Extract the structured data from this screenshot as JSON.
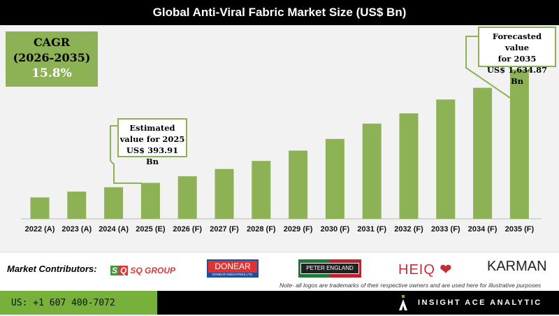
{
  "title": "Global Anti-Viral Fabric Market Size (US$ Bn)",
  "cagr": {
    "label": "CAGR",
    "period": "(2026-2035)",
    "value": "15.8%"
  },
  "callout_2025": {
    "line1": "Estimated",
    "line2": "value for 2025",
    "line3": "US$ 393.91 Bn"
  },
  "callout_2035": {
    "line1": "Forecasted value",
    "line2": "for 2035",
    "line3": "US$ 1,634.87 Bn"
  },
  "chart_data": {
    "type": "bar",
    "title": "Global Anti-Viral Fabric Market Size (US$ Bn)",
    "categories": [
      "2022 (A)",
      "2023 (A)",
      "2024 (A)",
      "2025 (E)",
      "2026 (F)",
      "2027 (F)",
      "2028 (F)",
      "2029 (F)",
      "2030 (F)",
      "2031 (F)",
      "2032 (F)",
      "2033 (F)",
      "2034 (F)",
      "2035 (F)"
    ],
    "values": [
      234,
      298,
      346,
      393.91,
      466,
      546,
      634,
      747,
      875,
      1043,
      1155,
      1307,
      1435,
      1634.87
    ],
    "ylim": [
      0,
      1700
    ],
    "grid": false,
    "bar_color": "#8db255"
  },
  "contributors": {
    "label": "Market Contributors:",
    "logos": [
      "SQ GROUP",
      "DONEAR",
      "DONEAR INDUSTRIES LTD.",
      "PETER ENGLAND",
      "HEIQ",
      "KARMAN"
    ],
    "note": "Note- all logos are trademarks of their respective owners and are used here for illustrative purposes"
  },
  "footer": {
    "phone": "US: +1 607 400-7072",
    "brand": "INSIGHT ACE ANALYTIC"
  }
}
